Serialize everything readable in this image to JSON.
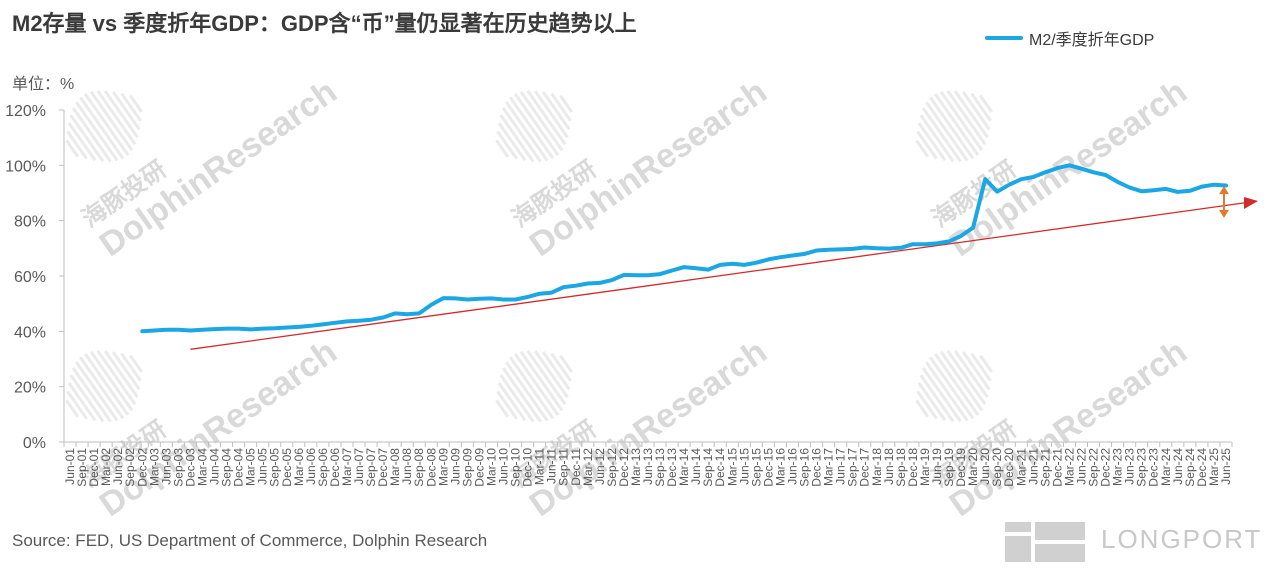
{
  "title": "M2存量 vs 季度折年GDP：GDP含“币”量仍显著在历史趋势以上",
  "unit_label": "单位：%",
  "source": "Source: FED, US Department of Commerce, Dolphin Research",
  "watermark": {
    "cn": "海豚投研",
    "en": "DolphinResearch",
    "color": "#d9d9d9"
  },
  "logo": {
    "text": "LONGPORT",
    "icon": "longport-logo-icon"
  },
  "colors": {
    "series": "#1ba6e4",
    "trend": "#d42a2a",
    "arrow": "#e07a2f",
    "axis": "#bfbfbf",
    "text": "#595959"
  },
  "chart_data": {
    "type": "line",
    "ylim": [
      0,
      120
    ],
    "y_ticks": [
      "0%",
      "20%",
      "40%",
      "60%",
      "80%",
      "100%",
      "120%"
    ],
    "y_tick_values": [
      0,
      20,
      40,
      60,
      80,
      100,
      120
    ],
    "x_tick_labels": [
      "Jun-01",
      "Sep-01",
      "Dec-01",
      "Mar-02",
      "Jun-02",
      "Sep-02",
      "Dec-02",
      "Mar-03",
      "Jun-03",
      "Sep-03",
      "Dec-03",
      "Mar-04",
      "Jun-04",
      "Sep-04",
      "Dec-04",
      "Mar-05",
      "Jun-05",
      "Sep-05",
      "Dec-05",
      "Mar-06",
      "Jun-06",
      "Sep-06",
      "Dec-06",
      "Mar-07",
      "Jun-07",
      "Sep-07",
      "Dec-07",
      "Mar-08",
      "Jun-08",
      "Sep-08",
      "Dec-08",
      "Mar-09",
      "Jun-09",
      "Sep-09",
      "Dec-09",
      "Mar-10",
      "Jun-10",
      "Sep-10",
      "Dec-10",
      "Mar-11",
      "Jun-11",
      "Sep-11",
      "Dec-11",
      "Mar-12",
      "Jun-12",
      "Sep-12",
      "Dec-12",
      "Mar-13",
      "Jun-13",
      "Sep-13",
      "Dec-13",
      "Mar-14",
      "Jun-14",
      "Sep-14",
      "Dec-14",
      "Mar-15",
      "Jun-15",
      "Sep-15",
      "Dec-15",
      "Mar-16",
      "Jun-16",
      "Sep-16",
      "Dec-16",
      "Mar-17",
      "Jun-17",
      "Sep-17",
      "Dec-17",
      "Mar-18",
      "Jun-18",
      "Sep-18",
      "Dec-18",
      "Mar-19",
      "Jun-19",
      "Sep-19",
      "Dec-19",
      "Mar-20",
      "Jun-20",
      "Sep-20",
      "Dec-20",
      "Mar-21",
      "Jun-21",
      "Sep-21",
      "Dec-21",
      "Mar-22",
      "Jun-22",
      "Sep-22",
      "Dec-22",
      "Mar-23",
      "Jun-23",
      "Sep-23",
      "Dec-23",
      "Mar-24",
      "Jun-24",
      "Sep-24",
      "Dec-24",
      "Mar-25",
      "Jun-25"
    ],
    "series": [
      {
        "name": "M2/季度折年GDP",
        "start_label": "Dec-02",
        "values": [
          40.0,
          40.3,
          40.6,
          40.6,
          40.3,
          40.6,
          40.8,
          41.0,
          41.0,
          40.7,
          41.0,
          41.1,
          41.4,
          41.6,
          42.0,
          42.5,
          43.1,
          43.6,
          43.8,
          44.2,
          45.0,
          46.5,
          46.2,
          46.5,
          49.6,
          52.0,
          51.9,
          51.5,
          51.8,
          51.9,
          51.5,
          51.5,
          52.4,
          53.6,
          54.0,
          56.0,
          56.5,
          57.3,
          57.5,
          58.5,
          60.4,
          60.3,
          60.3,
          60.7,
          62.0,
          63.2,
          62.8,
          62.3,
          64.0,
          64.4,
          64.0,
          64.8,
          66.0,
          66.8,
          67.4,
          68.0,
          69.2,
          69.5,
          69.6,
          69.8,
          70.3,
          70.0,
          69.9,
          70.2,
          71.5,
          71.5,
          71.8,
          72.5,
          74.5,
          77.5,
          95.0,
          90.5,
          93.0,
          95.0,
          95.8,
          97.5,
          99.0,
          100.0,
          98.8,
          97.5,
          96.5,
          94.0,
          92.0,
          90.6,
          91.0,
          91.5,
          90.4,
          90.8,
          92.3,
          93.0,
          92.7
        ]
      }
    ],
    "trend_line": {
      "start_label": "Dec-03",
      "start_value": 33.5,
      "end_label": "Jun-25",
      "end_value": 85.5,
      "extends_beyond_axis": true
    },
    "gap_arrow": {
      "at_label": "Jun-25",
      "from_value": 92.5,
      "to_value": 81.0
    }
  }
}
